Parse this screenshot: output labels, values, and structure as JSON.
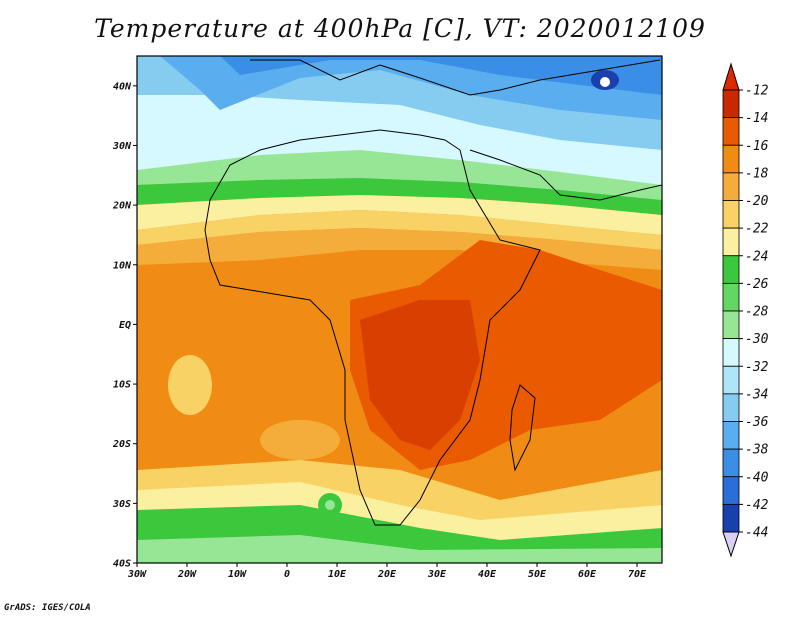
{
  "title": "Temperature at 400hPa [C], VT: 2020012109",
  "credit": "GrADS: IGES/COLA",
  "map": {
    "projection": "latlon",
    "lon_range": [
      -30,
      75
    ],
    "lat_range": [
      -40,
      45
    ],
    "x_ticks": [
      "30W",
      "20W",
      "10W",
      "0",
      "10E",
      "20E",
      "30E",
      "40E",
      "50E",
      "60E",
      "70E"
    ],
    "y_ticks": [
      "40N",
      "30N",
      "20N",
      "10N",
      "EQ",
      "10S",
      "20S",
      "30S",
      "40S"
    ]
  },
  "colorbar": {
    "labels": [
      "-12",
      "-14",
      "-16",
      "-18",
      "-20",
      "-22",
      "-24",
      "-26",
      "-28",
      "-30",
      "-32",
      "-34",
      "-36",
      "-38",
      "-40",
      "-42",
      "-44"
    ],
    "colors": [
      "#c82900",
      "#ea5a00",
      "#f08c14",
      "#f4ad3a",
      "#f8d264",
      "#fbf0a0",
      "#3cc83c",
      "#64d664",
      "#96e696",
      "#d6f8ff",
      "#b0e4f8",
      "#86ccf0",
      "#5aaef0",
      "#3a8ee6",
      "#2a6ed8",
      "#1a40b0",
      "#0a1a80"
    ],
    "top_arrow": "#dc2a00",
    "bottom_arrow": "#d8d0f4"
  }
}
